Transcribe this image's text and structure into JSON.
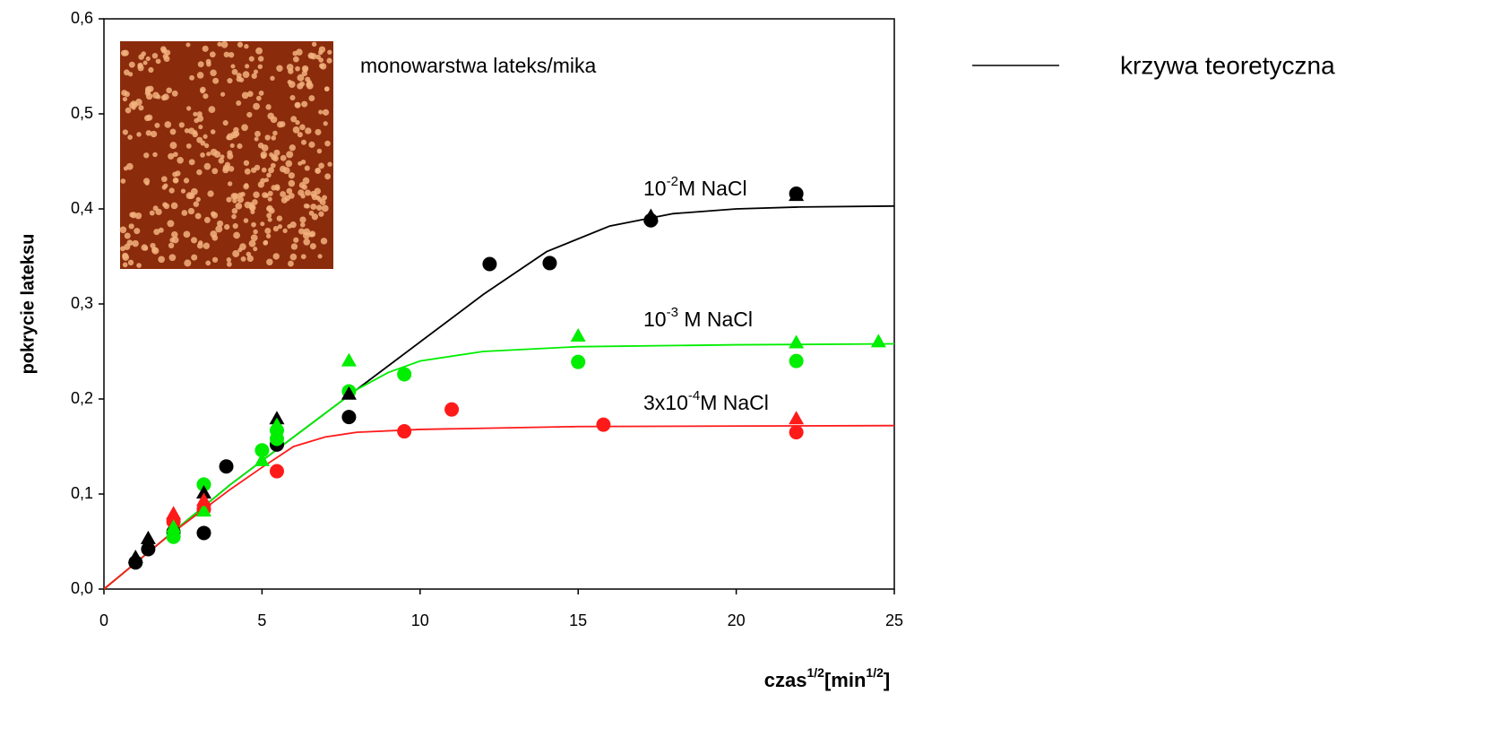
{
  "chart_data": {
    "type": "scatter",
    "ylabel": "pokrycie lateksu",
    "xlabel_parts": [
      "czas",
      "1/2",
      "[min",
      "1/2",
      "]"
    ],
    "xlim": [
      0,
      25
    ],
    "xticks": [
      0,
      5,
      10,
      15,
      20,
      25
    ],
    "ylim": [
      0,
      0.6
    ],
    "yticks": [
      {
        "value": 0,
        "label": "0,0"
      },
      {
        "value": 0.1,
        "label": "0,1"
      },
      {
        "value": 0.2,
        "label": "0,2"
      },
      {
        "value": 0.3,
        "label": "0,3"
      },
      {
        "value": 0.4,
        "label": "0,4"
      },
      {
        "value": 0.5,
        "label": "0,5"
      },
      {
        "value": 0.6,
        "label": "0,6"
      }
    ],
    "inset_caption": "monowarstwa lateks/mika",
    "annotations": [
      [
        "10",
        "-2",
        "M NaCl"
      ],
      [
        "10",
        "-3",
        " M NaCl"
      ],
      [
        "3x10",
        "-4",
        "M NaCl"
      ]
    ],
    "legend": {
      "label": "krzywa teoretyczna",
      "color": "#000000"
    },
    "series": [
      {
        "marker": "circle",
        "color": "#000000",
        "x": [
          1.0,
          1.4,
          2.2,
          3.16,
          3.87,
          5.47,
          7.75,
          12.2,
          14.1,
          17.3,
          21.9
        ],
        "values": [
          0.028,
          0.042,
          0.06,
          0.059,
          0.129,
          0.152,
          0.181,
          0.342,
          0.343,
          0.388,
          0.416
        ]
      },
      {
        "marker": "triangle",
        "color": "#000000",
        "x": [
          1.0,
          1.4,
          3.16,
          5.47,
          7.75,
          17.3,
          21.9
        ],
        "values": [
          0.033,
          0.053,
          0.101,
          0.179,
          0.205,
          0.392,
          0.414
        ]
      },
      {
        "marker": "circle",
        "color": "#00ee00",
        "x": [
          2.2,
          3.16,
          5.0,
          5.47,
          5.47,
          7.75,
          9.5,
          15.0,
          21.9
        ],
        "values": [
          0.055,
          0.11,
          0.146,
          0.158,
          0.167,
          0.208,
          0.226,
          0.239,
          0.24
        ]
      },
      {
        "marker": "triangle",
        "color": "#00ee00",
        "x": [
          2.2,
          3.16,
          5.0,
          5.47,
          7.75,
          15.0,
          21.9,
          24.5
        ],
        "values": [
          0.065,
          0.082,
          0.135,
          0.172,
          0.24,
          0.266,
          0.259,
          0.26
        ]
      },
      {
        "marker": "circle",
        "color": "#ff1a1a",
        "x": [
          2.2,
          3.16,
          5.47,
          9.5,
          11.0,
          15.8,
          21.9
        ],
        "values": [
          0.071,
          0.084,
          0.124,
          0.166,
          0.189,
          0.173,
          0.165
        ]
      },
      {
        "marker": "triangle",
        "color": "#ff1a1a",
        "x": [
          2.2,
          3.16,
          21.9
        ],
        "values": [
          0.079,
          0.093,
          0.179
        ]
      },
      {
        "marker": "line",
        "color": "#000000",
        "x": [
          0,
          2,
          4,
          6,
          8,
          10,
          12,
          14,
          16,
          18,
          20,
          22,
          25
        ],
        "values": [
          0,
          0.055,
          0.11,
          0.16,
          0.21,
          0.26,
          0.31,
          0.355,
          0.382,
          0.395,
          0.4,
          0.402,
          0.403
        ]
      },
      {
        "marker": "line",
        "color": "#00ee00",
        "x": [
          0,
          2,
          4,
          6,
          7,
          8,
          9,
          10,
          12,
          15,
          20,
          25
        ],
        "values": [
          0,
          0.055,
          0.11,
          0.16,
          0.185,
          0.21,
          0.228,
          0.24,
          0.25,
          0.255,
          0.257,
          0.258
        ]
      },
      {
        "marker": "line",
        "color": "#ff1a1a",
        "x": [
          0,
          2,
          4,
          5,
          6,
          7,
          8,
          10,
          15,
          25
        ],
        "values": [
          0,
          0.055,
          0.105,
          0.128,
          0.15,
          0.16,
          0.165,
          0.168,
          0.171,
          0.172
        ]
      }
    ]
  }
}
